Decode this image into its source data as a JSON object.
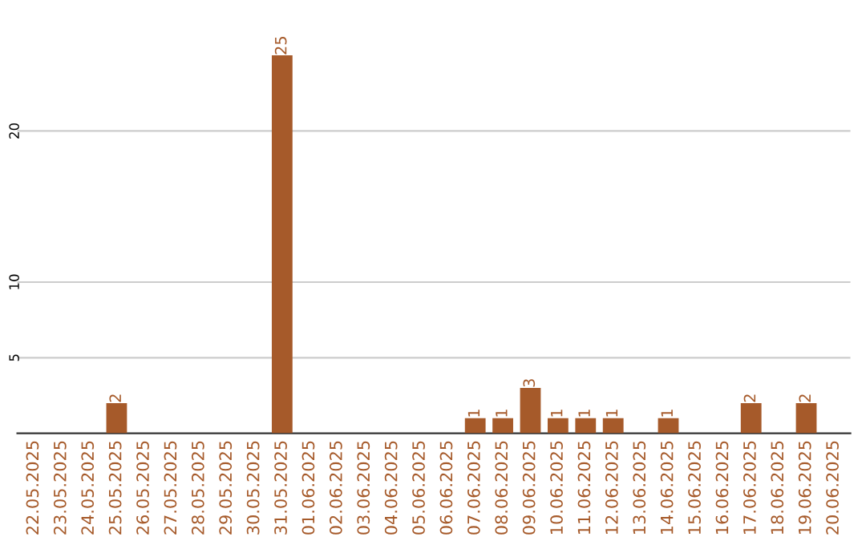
{
  "chart_data": {
    "type": "bar",
    "categories": [
      "22.05.2025",
      "23.05.2025",
      "24.05.2025",
      "25.05.2025",
      "26.05.2025",
      "27.05.2025",
      "28.05.2025",
      "29.05.2025",
      "30.05.2025",
      "31.05.2025",
      "01.06.2025",
      "02.06.2025",
      "03.06.2025",
      "04.06.2025",
      "05.06.2025",
      "06.06.2025",
      "07.06.2025",
      "08.06.2025",
      "09.06.2025",
      "10.06.2025",
      "11.06.2025",
      "12.06.2025",
      "13.06.2025",
      "14.06.2025",
      "15.06.2025",
      "16.06.2025",
      "17.06.2025",
      "18.06.2025",
      "19.06.2025",
      "20.06.2025"
    ],
    "values": [
      0,
      0,
      0,
      2,
      0,
      0,
      0,
      0,
      0,
      25,
      0,
      0,
      0,
      0,
      0,
      0,
      1,
      1,
      3,
      1,
      1,
      1,
      0,
      1,
      0,
      0,
      2,
      0,
      2,
      0
    ],
    "value_labels": [
      null,
      null,
      null,
      "2",
      null,
      null,
      null,
      null,
      null,
      "25",
      null,
      null,
      null,
      null,
      null,
      null,
      "1",
      "1",
      "3",
      "1",
      "1",
      "1",
      null,
      "1",
      null,
      null,
      "2",
      null,
      "2",
      null
    ],
    "color": "#a65a2a",
    "ylim": [
      0,
      25
    ],
    "yticks": [
      5,
      10,
      20
    ],
    "grid": "y"
  }
}
